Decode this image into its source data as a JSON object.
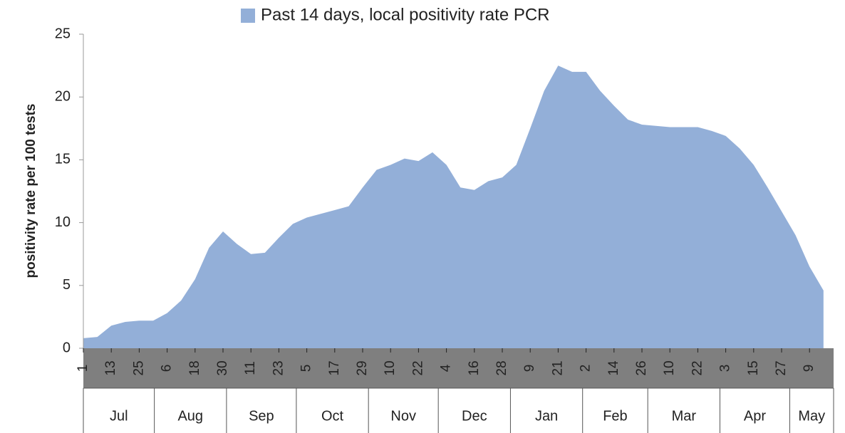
{
  "chart_data": {
    "type": "area",
    "legend_label": "Past 14 days, local positivity rate PCR",
    "y_label": "positivity rate per 100 tests",
    "color": "#93afd8",
    "categories": [
      "1",
      null,
      "13",
      null,
      "25",
      null,
      "6",
      null,
      "18",
      null,
      "30",
      null,
      "11",
      null,
      "23",
      null,
      "5",
      null,
      "17",
      null,
      "29",
      null,
      "10",
      null,
      "22",
      null,
      "4",
      null,
      "16",
      null,
      "28",
      null,
      "9",
      null,
      "21",
      null,
      "2",
      null,
      "14",
      null,
      "26",
      null,
      "10",
      null,
      "22",
      null,
      "3",
      null,
      "15",
      null,
      "27",
      null,
      "9",
      null
    ],
    "values": [
      0.8,
      0.9,
      1.8,
      2.1,
      2.2,
      2.2,
      2.8,
      3.8,
      5.5,
      8.0,
      9.3,
      8.3,
      7.5,
      7.6,
      8.8,
      9.9,
      10.4,
      10.7,
      11.0,
      11.3,
      12.8,
      14.2,
      14.6,
      15.1,
      14.9,
      15.6,
      14.6,
      12.8,
      12.6,
      13.3,
      13.6,
      14.6,
      17.5,
      20.5,
      22.5,
      22.0,
      22.0,
      20.5,
      19.3,
      18.2,
      17.8,
      17.7,
      17.6,
      17.6,
      17.6,
      17.3,
      16.9,
      15.9,
      14.6,
      12.8,
      10.9,
      9.0,
      6.5,
      4.6
    ],
    "months": [
      "Jul",
      "Aug",
      "Sep",
      "Oct",
      "Nov",
      "Dec",
      "Jan",
      "Feb",
      "Mar",
      "Apr",
      "May"
    ],
    "ylim": [
      0,
      25
    ],
    "yticks": [
      0,
      5,
      10,
      15,
      20,
      25
    ]
  }
}
